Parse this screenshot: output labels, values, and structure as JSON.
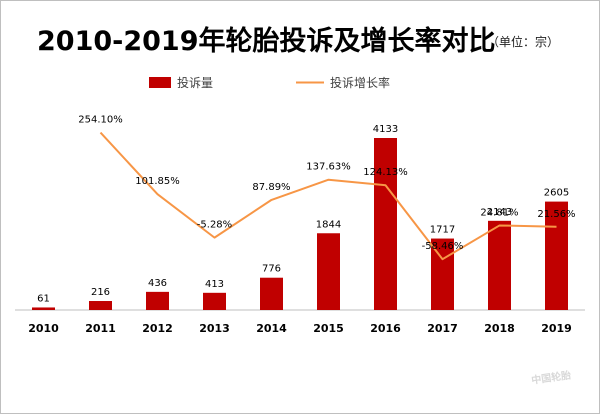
{
  "title": "2010-2019年轮胎投诉及增长率对比",
  "subtitle": "（单位：宗）",
  "colors": {
    "bar": "#c00000",
    "line": "#f79646",
    "axis": "#bfbfbf",
    "text": "#000000"
  },
  "chart_data": {
    "type": "bar",
    "categories": [
      "2010",
      "2011",
      "2012",
      "2013",
      "2014",
      "2015",
      "2016",
      "2017",
      "2018",
      "2019"
    ],
    "series": [
      {
        "name": "投诉量",
        "type": "bar",
        "values": [
          61,
          216,
          436,
          413,
          776,
          1844,
          4133,
          1717,
          2143,
          2605
        ],
        "labels": [
          "61",
          "216",
          "436",
          "413",
          "776",
          "1844",
          "4133",
          "1717",
          "2143",
          "2605"
        ]
      },
      {
        "name": "投诉增长率",
        "type": "line",
        "values": [
          254.1,
          101.85,
          -5.28,
          87.89,
          137.63,
          124.13,
          -58.46,
          24.81,
          21.56
        ],
        "x": [
          "2011",
          "2012",
          "2013",
          "2014",
          "2015",
          "2016",
          "2017",
          "2018",
          "2019"
        ],
        "labels": [
          "254.10%",
          "101.85%",
          "-5.28%",
          "87.89%",
          "137.63%",
          "124.13%",
          "-58.46%",
          "24.81%",
          "21.56%"
        ]
      }
    ],
    "legend_position": "top"
  }
}
